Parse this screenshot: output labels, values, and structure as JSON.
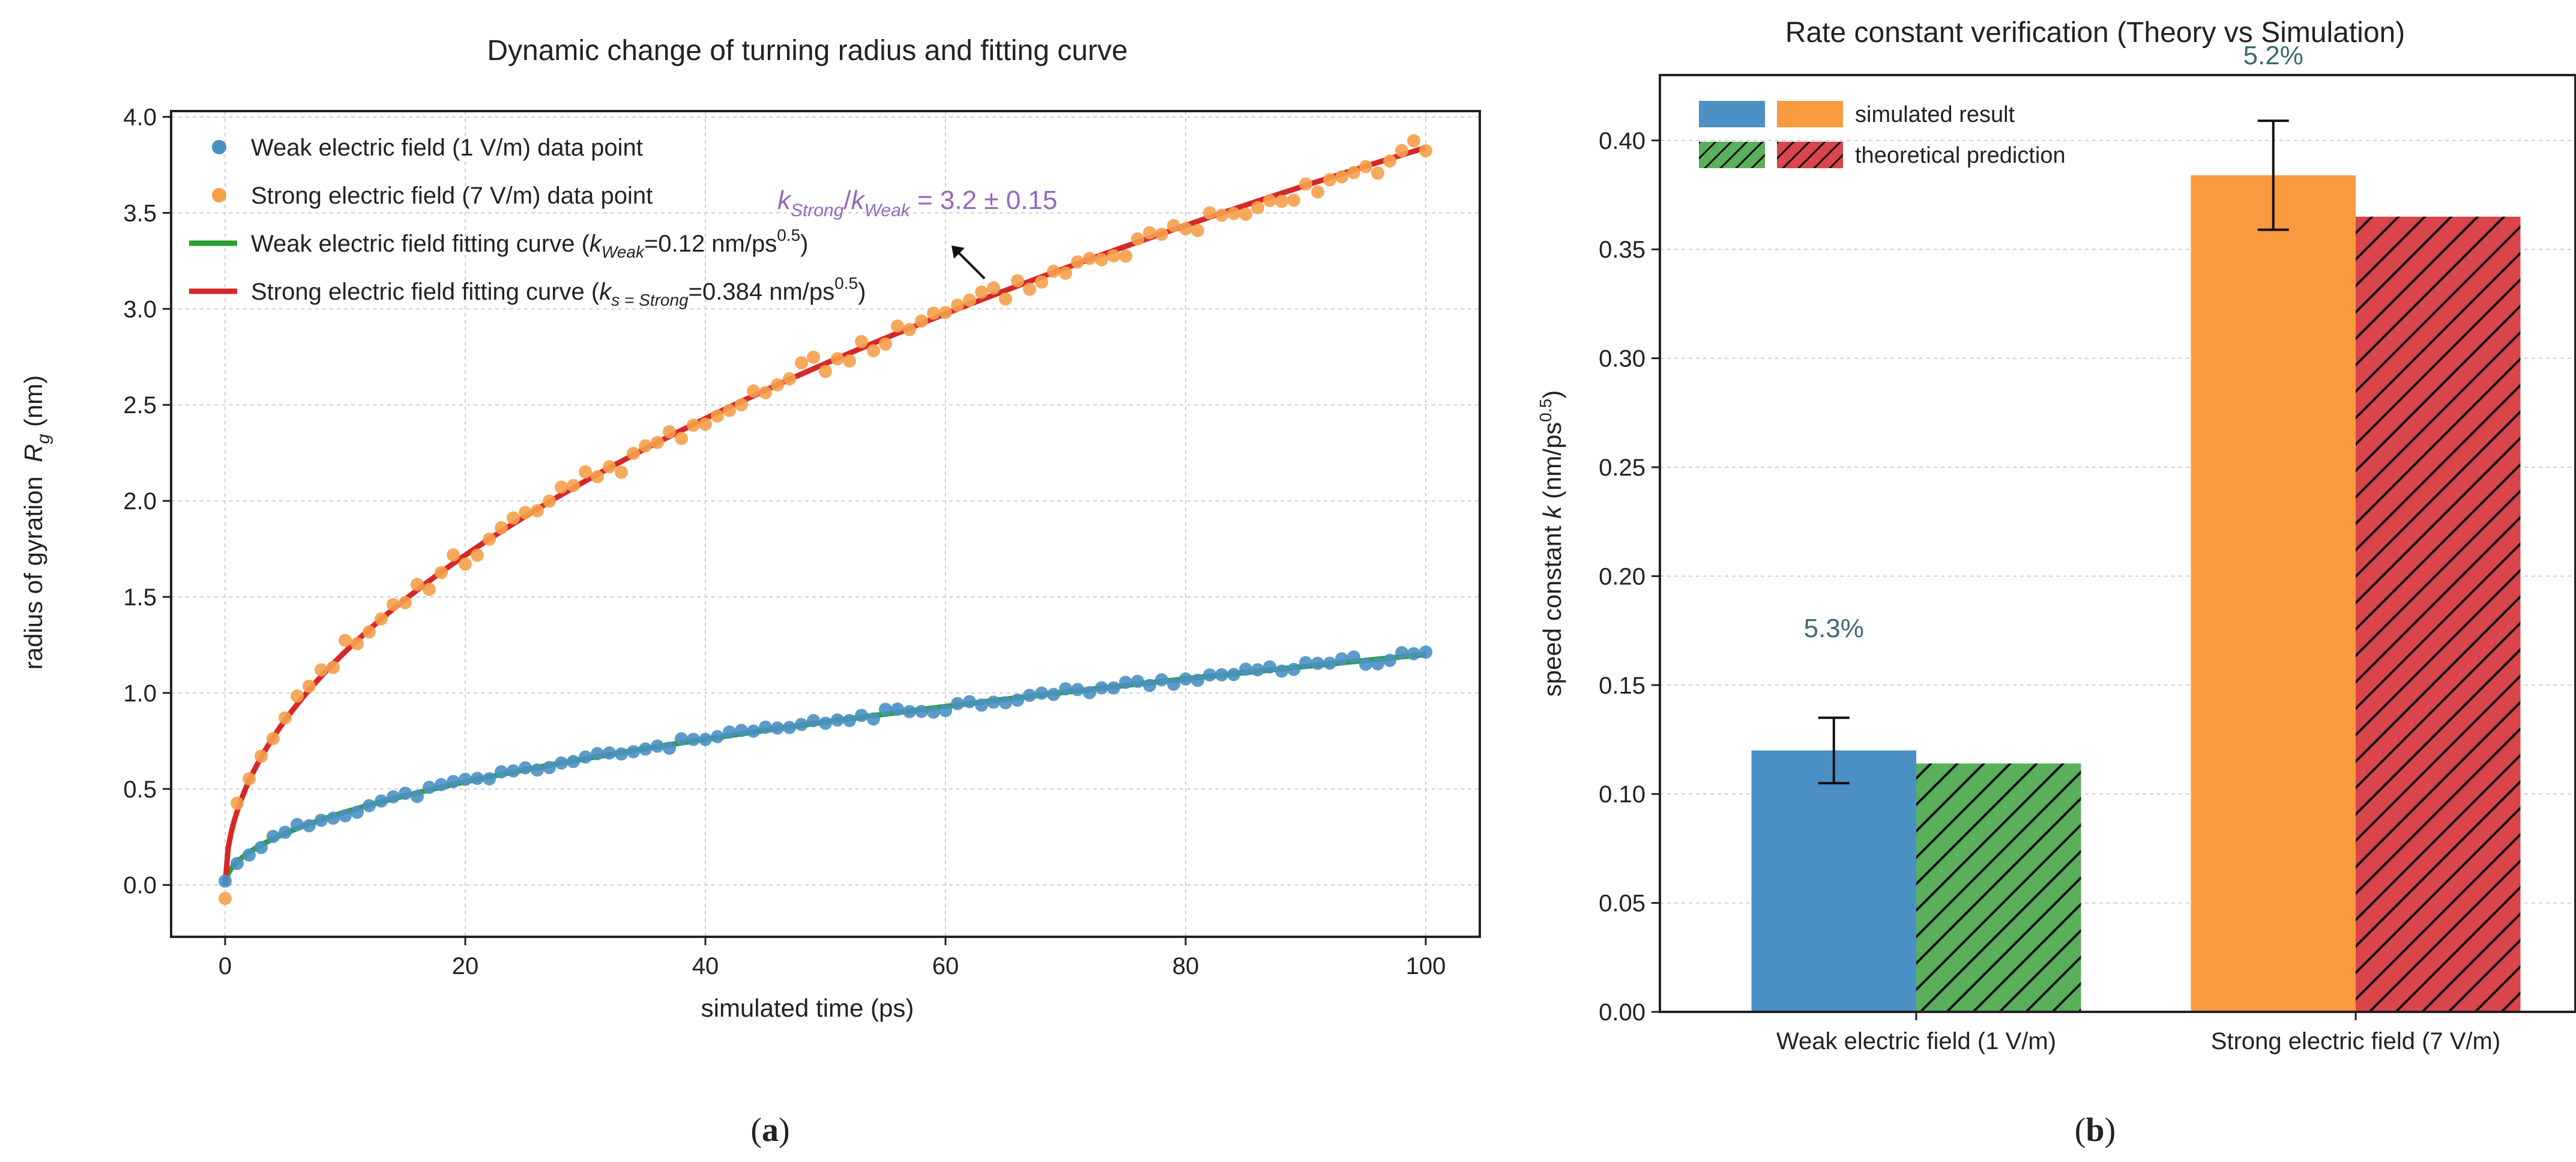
{
  "chart_data": [
    {
      "type": "line",
      "title": "Dynamic change of turning radius and fitting curve",
      "xlabel": "simulated time (ps)",
      "ylabel_text": "radius of gyration",
      "ylabel_sym": "R",
      "ylabel_sub": "g",
      "ylabel_unit": "(nm)",
      "xlim": [
        -4.5,
        104.5
      ],
      "ylim": [
        -0.27,
        4.03
      ],
      "xticks": [
        0,
        20,
        40,
        60,
        80,
        100
      ],
      "yticks": [
        0.0,
        0.5,
        1.0,
        1.5,
        2.0,
        2.5,
        3.0,
        3.5,
        4.0
      ],
      "xtick_labels": [
        "0",
        "20",
        "40",
        "60",
        "80",
        "100"
      ],
      "ytick_labels": [
        "0.0",
        "0.5",
        "1.0",
        "1.5",
        "2.0",
        "2.5",
        "3.0",
        "3.5",
        "4.0"
      ],
      "grid": true,
      "legend_position": "upper-left",
      "legend": [
        {
          "kind": "dot",
          "color": "#4a90c4",
          "label": "Weak electric field (1 V/m) data point"
        },
        {
          "kind": "dot",
          "color": "#f5a04a",
          "label": "Strong electric field (7 V/m) data point"
        },
        {
          "kind": "line",
          "color": "#2ca02c",
          "pre": "Weak electric field fitting curve (",
          "k": "k",
          "sub": "Weak",
          "post": "=0.12 nm/ps",
          "sup": "0.5",
          "end": ")"
        },
        {
          "kind": "line",
          "color": "#d62728",
          "pre": "Strong electric field fitting curve (",
          "k": "k",
          "sub": "s = Strong",
          "post": "=0.384 nm/ps",
          "sup": "0.5",
          "end": ")"
        }
      ],
      "series": [
        {
          "name": "Weak electric field (1 V/m) data point",
          "kind": "scatter",
          "color": "#4a90c4",
          "k": 0.12,
          "n": 101,
          "noise": 0.018,
          "seed": 11
        },
        {
          "name": "Strong electric field (7 V/m) data point",
          "kind": "scatter",
          "color": "#f5a04a",
          "k": 0.384,
          "n": 101,
          "noise": 0.045,
          "seed": 23
        },
        {
          "name": "Weak electric field fitting curve",
          "kind": "fit",
          "color": "#2ca02c",
          "model": "k*sqrt(t)",
          "k": 0.12
        },
        {
          "name": "Strong electric field fitting curve",
          "kind": "fit",
          "color": "#d62728",
          "model": "k*sqrt(t)",
          "k": 0.384
        }
      ],
      "annotation": {
        "k1": "k",
        "sub1": "Strong",
        "slash": "/",
        "k2": "k",
        "sub2": "Weak",
        "rest": " = 3.2 ± 0.15",
        "color": "#9467bd",
        "arrow_to": [
          60.5,
          3.33
        ],
        "text_at": [
          46,
          3.52
        ]
      },
      "panel_label": "(a)"
    },
    {
      "type": "bar",
      "title": "Rate constant verification (Theory vs Simulation)",
      "ylabel_text": "speed constant",
      "ylabel_sym": "k",
      "ylabel_unit": "(nm/ps",
      "ylabel_sup": "0.5",
      "ylabel_end": ")",
      "categories": [
        "Weak electric field (1 V/m)",
        "Strong electric field (7 V/m)"
      ],
      "series": [
        {
          "name": "simulated result",
          "values": [
            0.12,
            0.384
          ],
          "errors": [
            0.015,
            0.025
          ],
          "colors": [
            "#4a90c4",
            "#f99a3f"
          ]
        },
        {
          "name": "theoretical prediction",
          "values": [
            0.114,
            0.365
          ],
          "colors": [
            "#5aaf5a",
            "#d9454a"
          ],
          "hatch": true
        }
      ],
      "percent_labels": [
        "5.3%",
        "5.2%"
      ],
      "percent_label_values": [
        0.172,
        0.435
      ],
      "ylim": [
        0,
        0.43
      ],
      "yticks": [
        0.0,
        0.05,
        0.1,
        0.15,
        0.2,
        0.25,
        0.3,
        0.35,
        0.4
      ],
      "ytick_labels": [
        "0.00",
        "0.05",
        "0.10",
        "0.15",
        "0.20",
        "0.25",
        "0.30",
        "0.35",
        "0.40"
      ],
      "grid": true,
      "legend_position": "upper-left",
      "legend": [
        {
          "label": "simulated result",
          "colors": [
            "#4a90c4",
            "#f99a3f"
          ],
          "hatch": false
        },
        {
          "label": "theoretical prediction",
          "colors": [
            "#5aaf5a",
            "#d9454a"
          ],
          "hatch": true
        }
      ],
      "panel_label": "(b)"
    }
  ]
}
